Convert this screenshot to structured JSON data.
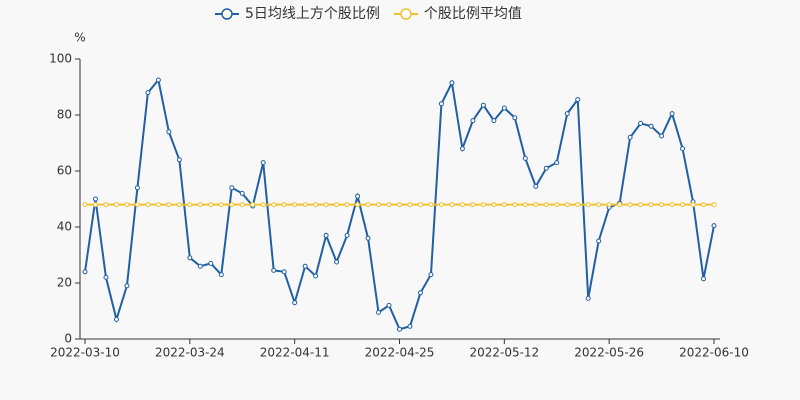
{
  "chart_data": {
    "type": "line",
    "y_unit": "%",
    "categories": [
      "2022-03-10",
      null,
      null,
      null,
      null,
      null,
      null,
      null,
      null,
      null,
      "2022-03-24",
      null,
      null,
      null,
      null,
      null,
      null,
      null,
      null,
      null,
      "2022-04-11",
      null,
      null,
      null,
      null,
      null,
      null,
      null,
      null,
      null,
      "2022-04-25",
      null,
      null,
      null,
      null,
      null,
      null,
      null,
      null,
      null,
      "2022-05-12",
      null,
      null,
      null,
      null,
      null,
      null,
      null,
      null,
      null,
      "2022-05-26",
      null,
      null,
      null,
      null,
      null,
      null,
      null,
      null,
      null,
      "2022-06-10"
    ],
    "series": [
      {
        "name": "5日均线上方个股比例",
        "color": "#2160a3",
        "values": [
          24,
          50,
          22,
          7,
          19,
          54,
          88,
          92.5,
          74,
          64,
          29,
          26,
          27,
          23,
          54,
          52,
          47.5,
          63,
          24.5,
          24,
          13,
          26,
          22.5,
          37,
          27.5,
          37,
          51,
          36,
          9.5,
          12,
          3.5,
          4.5,
          16.5,
          23,
          84,
          91.5,
          68,
          78,
          83.5,
          78,
          82.5,
          79,
          64.5,
          54.5,
          61,
          63,
          80.5,
          85.5,
          14.5,
          35,
          47,
          48.5,
          72,
          77,
          76,
          72.5,
          80.5,
          68,
          49,
          21.5,
          40.5
        ]
      },
      {
        "name": "个股比例平均值",
        "color": "#f2c12e",
        "values": [
          48,
          48,
          48,
          48,
          48,
          48,
          48,
          48,
          48,
          48,
          48,
          48,
          48,
          48,
          48,
          48,
          48,
          48,
          48,
          48,
          48,
          48,
          48,
          48,
          48,
          48,
          48,
          48,
          48,
          48,
          48,
          48,
          48,
          48,
          48,
          48,
          48,
          48,
          48,
          48,
          48,
          48,
          48,
          48,
          48,
          48,
          48,
          48,
          48,
          48,
          48,
          48,
          48,
          48,
          48,
          48,
          48,
          48,
          48,
          48,
          48
        ]
      }
    ],
    "ylim": [
      0,
      100
    ],
    "yticks": [
      0,
      20,
      40,
      60,
      80,
      100
    ],
    "grid": false
  }
}
